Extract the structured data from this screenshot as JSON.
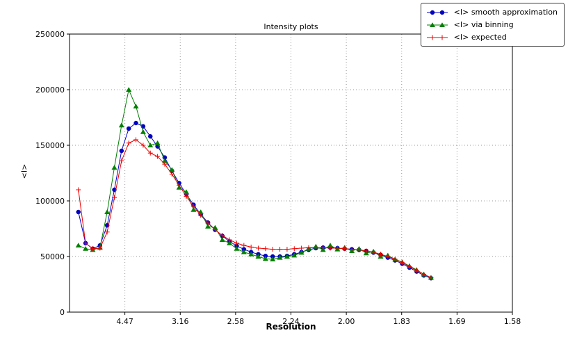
{
  "chart_data": {
    "type": "line",
    "title": "Intensity plots",
    "xlabel": "Resolution",
    "ylabel": "<I>",
    "grid": "dotted",
    "legend_position": "top-right",
    "x_axis": {
      "range": [
        0,
        0.4
      ],
      "ticks": [
        {
          "pos": 0.05,
          "label": "4.47"
        },
        {
          "pos": 0.1,
          "label": "3.16"
        },
        {
          "pos": 0.15,
          "label": "2.58"
        },
        {
          "pos": 0.2,
          "label": "2.24"
        },
        {
          "pos": 0.25,
          "label": "2.00"
        },
        {
          "pos": 0.3,
          "label": "1.83"
        },
        {
          "pos": 0.35,
          "label": "1.69"
        },
        {
          "pos": 0.4,
          "label": "1.58"
        }
      ]
    },
    "y_axis": {
      "range": [
        0,
        250000
      ],
      "ticks": [
        {
          "pos": 0,
          "label": "0"
        },
        {
          "pos": 50000,
          "label": "50000"
        },
        {
          "pos": 100000,
          "label": "100000"
        },
        {
          "pos": 150000,
          "label": "150000"
        },
        {
          "pos": 200000,
          "label": "200000"
        },
        {
          "pos": 250000,
          "label": "250000"
        }
      ]
    },
    "x_inv_d2": [
      0.008,
      0.0145,
      0.021,
      0.0275,
      0.034,
      0.0405,
      0.047,
      0.0535,
      0.06,
      0.0665,
      0.073,
      0.0795,
      0.086,
      0.0925,
      0.099,
      0.1055,
      0.112,
      0.1185,
      0.125,
      0.1315,
      0.138,
      0.1445,
      0.151,
      0.1575,
      0.164,
      0.1705,
      0.177,
      0.1835,
      0.19,
      0.1965,
      0.203,
      0.2095,
      0.216,
      0.2225,
      0.229,
      0.2355,
      0.242,
      0.2485,
      0.255,
      0.2615,
      0.268,
      0.2745,
      0.281,
      0.2875,
      0.294,
      0.3005,
      0.307,
      0.3135,
      0.32,
      0.3265
    ],
    "series": [
      {
        "name": "<I> smooth approximation",
        "color": "#0000cd",
        "marker": "circle",
        "values": [
          90000,
          62000,
          57000,
          60000,
          78000,
          110000,
          145000,
          165000,
          170000,
          167000,
          158000,
          149000,
          139000,
          127000,
          116000,
          106000,
          96500,
          88000,
          80500,
          74000,
          68500,
          63500,
          59500,
          56500,
          54000,
          52000,
          50500,
          50000,
          50000,
          50500,
          52000,
          54000,
          56000,
          57500,
          58000,
          58000,
          57500,
          57000,
          56500,
          56000,
          55000,
          53500,
          51500,
          49000,
          46500,
          43500,
          40000,
          36500,
          33000,
          30500
        ]
      },
      {
        "name": "<I> via binning",
        "color": "#008000",
        "marker": "triangle",
        "values": [
          60000,
          57000,
          56000,
          58000,
          90000,
          130000,
          168000,
          200000,
          185000,
          162000,
          150000,
          152000,
          136000,
          128000,
          112000,
          108000,
          92000,
          90000,
          77000,
          76000,
          65000,
          62000,
          57000,
          54000,
          52000,
          50000,
          48000,
          47500,
          49000,
          50000,
          51000,
          53500,
          57000,
          59000,
          56000,
          60000,
          56500,
          58000,
          55000,
          57000,
          53000,
          54500,
          50000,
          51000,
          47500,
          45000,
          41500,
          38000,
          34000,
          31000
        ]
      },
      {
        "name": "<I> expected",
        "color": "#ee0000",
        "marker": "plus",
        "values": [
          110000,
          62000,
          57000,
          57500,
          72000,
          103000,
          136000,
          152000,
          155000,
          150000,
          143000,
          140000,
          133000,
          124000,
          114000,
          104000,
          95000,
          87000,
          80000,
          74000,
          69000,
          65000,
          62000,
          60000,
          58500,
          57500,
          57000,
          56500,
          56500,
          56500,
          57000,
          57500,
          58000,
          58000,
          58000,
          57500,
          57500,
          57000,
          56500,
          56000,
          55000,
          54000,
          52000,
          50000,
          47500,
          44500,
          41000,
          37500,
          34000,
          31000
        ]
      }
    ]
  }
}
